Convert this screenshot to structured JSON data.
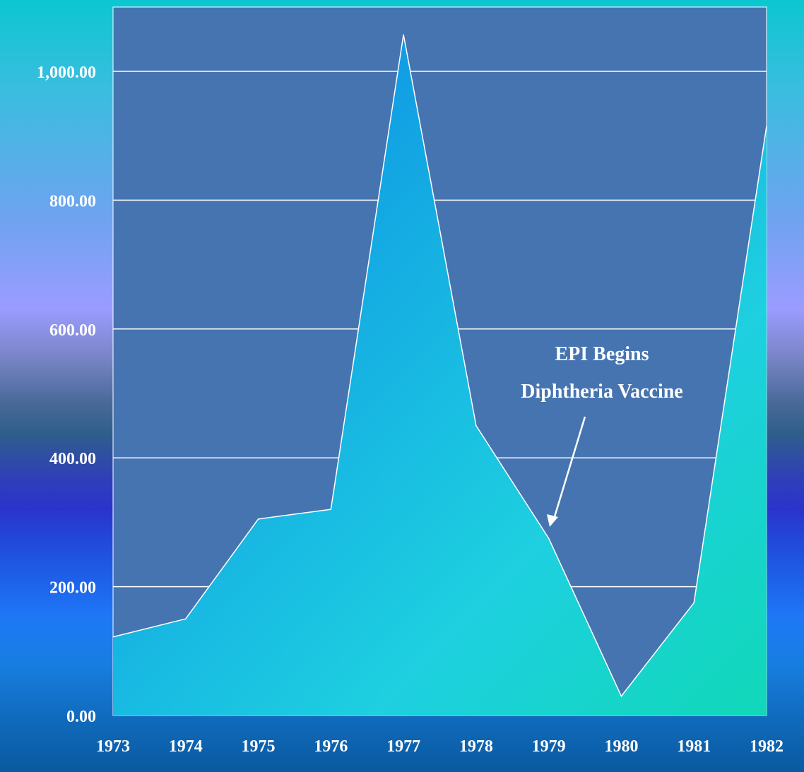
{
  "chart_data": {
    "type": "area",
    "categories": [
      "1973",
      "1974",
      "1975",
      "1976",
      "1977",
      "1978",
      "1979",
      "1980",
      "1981",
      "1982"
    ],
    "series": [
      {
        "values": [
          122,
          150,
          305,
          320,
          1057,
          450,
          275,
          30,
          175,
          915
        ]
      }
    ],
    "yticks": [
      "0.00",
      "200.00",
      "400.00",
      "600.00",
      "800.00",
      "1,000.00"
    ],
    "ytick_values": [
      0,
      200,
      400,
      600,
      800,
      1000
    ],
    "ylim": [
      0,
      1100
    ],
    "grid": true,
    "legend": "none",
    "annotations": [
      {
        "lines": [
          "EPI Begins",
          "Diphtheria Vaccine"
        ],
        "points_to": "1979"
      }
    ],
    "colors": {
      "plot_background": "#4674b0",
      "area_fill_start": "#0a84e6",
      "area_fill_end": "#10d8b8",
      "gridline": "#ffffff",
      "text": "#ffffff"
    }
  }
}
